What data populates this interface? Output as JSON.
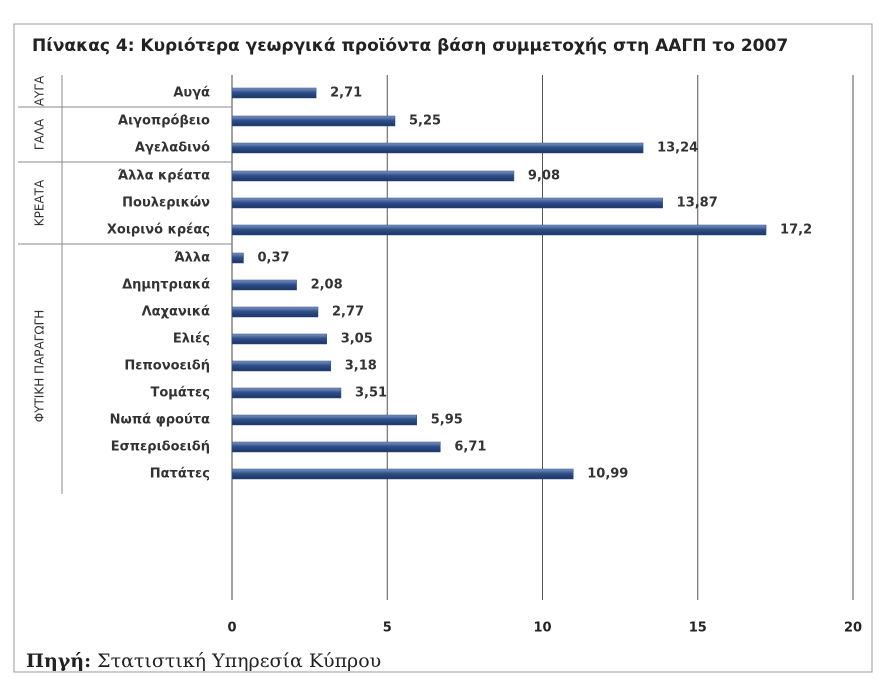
{
  "chart_data": {
    "type": "bar",
    "orientation": "horizontal",
    "title": "Πίνακας 4: Κυριότερα γεωργικά προϊόντα βάση συμμετοχής στη ΑΑΓΠ το 2007",
    "color": "#2f4f8a",
    "groups": [
      {
        "label": "ΑΥΓΑ",
        "categories": [
          "Αυγά"
        ],
        "values": [
          2.71
        ],
        "value_labels": [
          "2,71"
        ]
      },
      {
        "label": "ΓΑΛΑ",
        "categories": [
          "Αιγοπρόβειο",
          "Αγελαδινό"
        ],
        "values": [
          5.25,
          13.24
        ],
        "value_labels": [
          "5,25",
          "13,24"
        ]
      },
      {
        "label": "ΚΡΕΑΤΑ",
        "categories": [
          "Άλλα κρέατα",
          "Πουλερικών",
          "Χοιρινό κρέας"
        ],
        "values": [
          9.08,
          13.87,
          17.2
        ],
        "value_labels": [
          "9,08",
          "13,87",
          "17,2"
        ]
      },
      {
        "label": "ΦΥΤΙΚΗ ΠΑΡΑΓΩΓΗ",
        "categories": [
          "Άλλα",
          "Δημητριακά",
          "Λαχανικά",
          "Ελιές",
          "Πεπονοειδή",
          "Τομάτες",
          "Νωπά φρούτα",
          "Εσπεριδοειδή",
          "Πατάτες"
        ],
        "values": [
          0.37,
          2.08,
          2.77,
          3.05,
          3.18,
          3.51,
          5.95,
          6.71,
          10.99
        ],
        "value_labels": [
          "0,37",
          "2,08",
          "2,77",
          "3,05",
          "3,18",
          "3,51",
          "5,95",
          "6,71",
          "10,99"
        ]
      }
    ],
    "xlim": [
      0,
      20
    ],
    "xticks": [
      0,
      5,
      10,
      15,
      20
    ],
    "grid": true,
    "source_label": "Πηγή:",
    "source": "Στατιστική Υπηρεσία Κύπρου"
  }
}
